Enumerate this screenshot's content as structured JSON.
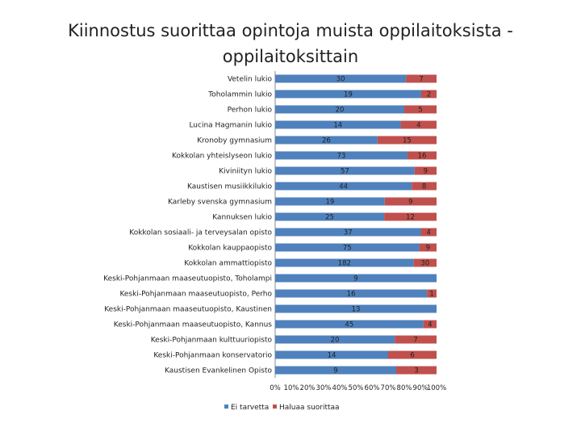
{
  "chart_data": {
    "type": "bar",
    "orientation": "horizontal",
    "stacked": "percent",
    "title": "Kiinnostus suorittaa opintoja muista oppilaitoksista - oppilaitoksittain",
    "categories": [
      "Vetelin lukio",
      "Toholammin lukio",
      "Perhon lukio",
      "Lucina Hagmanin lukio",
      "Kronoby gymnasium",
      "Kokkolan yhteislyseon lukio",
      "Kiviniityn lukio",
      "Kaustisen musiikkilukio",
      "Karleby svenska gymnasium",
      "Kannuksen lukio",
      "Kokkolan sosiaali- ja terveysalan opisto",
      "Kokkolan kauppaopisto",
      "Kokkolan ammattiopisto",
      "Keski-Pohjanmaan maaseutuopisto, Toholampi",
      "Keski-Pohjanmaan maaseutuopisto, Perho",
      "Keski-Pohjanmaan maaseutuopisto, Kaustinen",
      "Keski-Pohjanmaan maaseutuopisto, Kannus",
      "Keski-Pohjanmaan kulttuuriopisto",
      "Keski-Pohjanmaan konservatorio",
      "Kaustisen Evankelinen Opisto"
    ],
    "series": [
      {
        "name": "Ei tarvetta",
        "color": "#4f81bd",
        "values": [
          30,
          19,
          20,
          14,
          26,
          73,
          57,
          44,
          19,
          25,
          37,
          75,
          182,
          9,
          16,
          13,
          45,
          20,
          14,
          9
        ]
      },
      {
        "name": "Haluaa suorittaa",
        "color": "#c0504d",
        "values": [
          7,
          2,
          5,
          4,
          15,
          16,
          9,
          8,
          9,
          12,
          4,
          9,
          30,
          0,
          1,
          0,
          4,
          7,
          6,
          3
        ]
      }
    ],
    "xaxis": {
      "range": [
        0,
        100
      ],
      "ticks": [
        "0%",
        "10%",
        "20%",
        "30%",
        "40%",
        "50%",
        "60%",
        "70%",
        "80%",
        "90%",
        "100%"
      ]
    },
    "legend": {
      "position": "bottom"
    }
  }
}
